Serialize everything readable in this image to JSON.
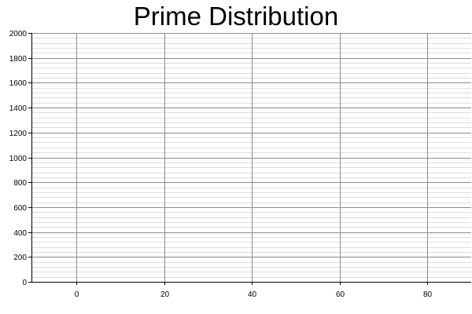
{
  "chart_data": {
    "type": "scatter",
    "title": "Prime Distribution",
    "xlabel": "",
    "ylabel": "",
    "xlim": [
      -10.3,
      90
    ],
    "ylim": [
      0,
      2000
    ],
    "x_ticks": [
      0,
      20,
      40,
      60,
      80
    ],
    "y_ticks": [
      0,
      200,
      400,
      600,
      800,
      1000,
      1200,
      1400,
      1600,
      1800,
      2000
    ],
    "x_tick_labels": [
      "0",
      "20",
      "40",
      "60",
      "80"
    ],
    "y_tick_labels": [
      "0",
      "200",
      "400",
      "600",
      "800",
      "1000",
      "1200",
      "1400",
      "1600",
      "1800",
      "2000"
    ],
    "y_minor_step": 40,
    "grid": true,
    "series": [],
    "colors": {
      "major_grid": "#8c8c8c",
      "minor_grid": "#dcdcdc",
      "axis": "#000000"
    }
  }
}
